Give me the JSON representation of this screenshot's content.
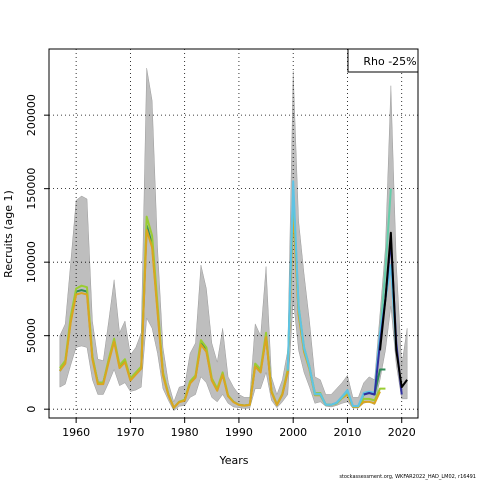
{
  "chart_data": {
    "type": "line",
    "xlabel": "Years",
    "ylabel": "Recruits (age 1)",
    "xlim": [
      1955,
      2023
    ],
    "ylim": [
      -6000,
      245000
    ],
    "x_ticks": [
      1960,
      1970,
      1980,
      1990,
      2000,
      2010,
      2020
    ],
    "y_ticks": [
      0,
      50000,
      100000,
      150000,
      200000
    ],
    "x_tick_labels": [
      "1960",
      "1970",
      "1980",
      "1990",
      "2000",
      "2010",
      "2020"
    ],
    "y_tick_labels": [
      "0",
      "50000",
      "100000",
      "150000",
      "200000"
    ],
    "grid": true,
    "legend_text": "Rho -25%",
    "legend_position": "top-right",
    "credit": "stockassessment.org, WKFAR2022_HAD_LM02, r16491",
    "band": {
      "name": "confidence interval",
      "color": "#bebebe",
      "x": [
        1957,
        1958,
        1959,
        1960,
        1961,
        1962,
        1963,
        1964,
        1965,
        1966,
        1967,
        1968,
        1969,
        1970,
        1971,
        1972,
        1973,
        1974,
        1975,
        1976,
        1977,
        1978,
        1979,
        1980,
        1981,
        1982,
        1983,
        1984,
        1985,
        1986,
        1987,
        1988,
        1989,
        1990,
        1991,
        1992,
        1993,
        1994,
        1995,
        1996,
        1997,
        1998,
        1999,
        2000,
        2001,
        2002,
        2003,
        2004,
        2005,
        2006,
        2007,
        2008,
        2009,
        2010,
        2011,
        2012,
        2013,
        2014,
        2015,
        2016,
        2017,
        2018,
        2019,
        2020,
        2021
      ],
      "upper": [
        50000,
        58000,
        100000,
        142000,
        145000,
        143000,
        60000,
        34000,
        33000,
        60000,
        88000,
        52000,
        60000,
        37000,
        42000,
        52000,
        232000,
        210000,
        110000,
        42000,
        18000,
        5000,
        15000,
        16000,
        38000,
        45000,
        98000,
        82000,
        45000,
        32000,
        55000,
        22000,
        15000,
        10000,
        8000,
        8000,
        58000,
        50000,
        97000,
        22000,
        10000,
        20000,
        40000,
        230000,
        128000,
        92000,
        60000,
        22000,
        20000,
        10000,
        10000,
        14000,
        18000,
        23000,
        8000,
        8000,
        18000,
        22000,
        20000,
        65000,
        110000,
        220000,
        100000,
        30000,
        55000
      ],
      "lower": [
        15000,
        17000,
        30000,
        42000,
        43000,
        42000,
        20000,
        10000,
        10000,
        18000,
        27000,
        16000,
        18000,
        12000,
        13000,
        15000,
        62000,
        55000,
        38000,
        14000,
        6000,
        -1000,
        2000,
        2500,
        8000,
        10000,
        22000,
        18000,
        8000,
        5000,
        10000,
        4000,
        1500,
        1000,
        500,
        800,
        14000,
        14000,
        25000,
        6000,
        1000,
        5000,
        10000,
        75000,
        40000,
        25000,
        15000,
        4000,
        5000,
        2000,
        1500,
        2500,
        4000,
        5000,
        800,
        800,
        4000,
        5000,
        3000,
        20000,
        40000,
        70000,
        30000,
        7000,
        7000
      ]
    },
    "series": [
      {
        "color": "#2e8b57",
        "x": [
          1957,
          1958,
          1959,
          1960,
          1961,
          1962,
          1963,
          1964,
          1965,
          1966,
          1967,
          1968,
          1969,
          1970,
          1971,
          1972,
          1973,
          1974,
          1975,
          1976,
          1977,
          1978,
          1979,
          1980,
          1981,
          1982,
          1983,
          1984,
          1985,
          1986,
          1987,
          1988,
          1989,
          1990,
          1991,
          1992,
          1993,
          1994,
          1995,
          1996,
          1997,
          1998,
          1999,
          2000,
          2001,
          2002,
          2003,
          2004,
          2005,
          2006,
          2007,
          2008,
          2009,
          2010,
          2011,
          2012,
          2013,
          2014,
          2015,
          2016,
          2017
        ],
        "values": [
          26000,
          32000,
          60000,
          80000,
          81000,
          80000,
          35000,
          18000,
          18000,
          33000,
          47000,
          29000,
          33000,
          20000,
          24000,
          28000,
          125000,
          112000,
          68000,
          24000,
          10000,
          1000,
          5000,
          6000,
          18000,
          22000,
          45000,
          40000,
          20000,
          13000,
          24000,
          9000,
          5000,
          3000,
          2500,
          3000,
          30000,
          26000,
          50000,
          12000,
          3000,
          10000,
          26000,
          140000,
          66000,
          40000,
          28000,
          10000,
          10000,
          3000,
          3000,
          4000,
          8000,
          12000,
          2000,
          2000,
          10000,
          11000,
          10000,
          27000,
          27000
        ]
      },
      {
        "color": "#9acd32",
        "x": [
          1957,
          1958,
          1959,
          1960,
          1961,
          1962,
          1963,
          1964,
          1965,
          1966,
          1967,
          1968,
          1969,
          1970,
          1971,
          1972,
          1973,
          1974,
          1975,
          1976,
          1977,
          1978,
          1979,
          1980,
          1981,
          1982,
          1983,
          1984,
          1985,
          1986,
          1987,
          1988,
          1989,
          1990,
          1991,
          1992,
          1993,
          1994,
          1995,
          1996,
          1997,
          1998,
          1999,
          2000,
          2001,
          2002,
          2003,
          2004,
          2005,
          2006,
          2007,
          2008,
          2009,
          2010,
          2011,
          2012,
          2013,
          2014,
          2015,
          2016,
          2017
        ],
        "values": [
          28000,
          33000,
          63000,
          82000,
          84000,
          83000,
          36000,
          18000,
          18000,
          34000,
          48000,
          30000,
          34000,
          21000,
          25000,
          29000,
          131000,
          118000,
          71000,
          25000,
          10000,
          1000,
          5000,
          6500,
          19000,
          23000,
          47000,
          42000,
          21000,
          14000,
          25000,
          9500,
          5000,
          3000,
          2500,
          3000,
          31000,
          27000,
          52000,
          12500,
          3000,
          10500,
          27000,
          146000,
          70000,
          42000,
          29000,
          11000,
          11000,
          3000,
          3000,
          4000,
          8500,
          11000,
          2000,
          2000,
          7000,
          7000,
          6000,
          14000,
          14000
        ]
      },
      {
        "color": "#daa520",
        "x": [
          1957,
          1958,
          1959,
          1960,
          1961,
          1962,
          1963,
          1964,
          1965,
          1966,
          1967,
          1968,
          1969,
          1970,
          1971,
          1972,
          1973,
          1974,
          1975,
          1976,
          1977,
          1978,
          1979,
          1980,
          1981,
          1982,
          1983,
          1984,
          1985,
          1986,
          1987,
          1988,
          1989,
          1990,
          1991,
          1992,
          1993,
          1994,
          1995,
          1996,
          1997,
          1998,
          1999,
          2000,
          2001,
          2002,
          2003,
          2004,
          2005,
          2006,
          2007,
          2008,
          2009,
          2010,
          2011,
          2012,
          2013,
          2014,
          2015,
          2016
        ],
        "values": [
          26000,
          31000,
          59000,
          78000,
          79000,
          78000,
          34000,
          17000,
          17000,
          32000,
          46000,
          28000,
          32000,
          19500,
          23500,
          27500,
          122000,
          110000,
          66000,
          23000,
          9500,
          1000,
          4800,
          5800,
          17500,
          21500,
          44000,
          39000,
          19500,
          12500,
          23500,
          8800,
          4800,
          2900,
          2400,
          2900,
          29000,
          25000,
          49000,
          11500,
          2900,
          9800,
          25000,
          137000,
          64000,
          39000,
          27000,
          9500,
          9500,
          2900,
          2900,
          3800,
          7500,
          10000,
          1500,
          1500,
          5000,
          5000,
          4000,
          12000
        ]
      },
      {
        "color": "#66cdaa",
        "x": [
          1999,
          2000,
          2001,
          2002,
          2003,
          2004,
          2005,
          2006,
          2007,
          2008,
          2009,
          2010,
          2011,
          2012,
          2013,
          2014,
          2015,
          2016,
          2017,
          2018
        ],
        "values": [
          26000,
          150000,
          68000,
          41000,
          28000,
          10000,
          10000,
          3000,
          3000,
          4000,
          8000,
          12000,
          2000,
          2000,
          10000,
          11000,
          10000,
          50000,
          95000,
          150000
        ]
      },
      {
        "color": "#5fc3e4",
        "x": [
          1999,
          2000,
          2001,
          2002,
          2003,
          2004,
          2005,
          2006,
          2007,
          2008,
          2009,
          2010,
          2011,
          2012,
          2013,
          2014,
          2015,
          2016,
          2017,
          2018,
          2019
        ],
        "values": [
          27000,
          155000,
          70000,
          42000,
          29000,
          10500,
          10500,
          3000,
          3000,
          4500,
          8500,
          13000,
          2200,
          2200,
          11000,
          12000,
          11000,
          52000,
          75000,
          98000,
          40000
        ]
      },
      {
        "color": "#2f2fa0",
        "x": [
          2013,
          2014,
          2015,
          2016,
          2017,
          2018,
          2019,
          2020
        ],
        "values": [
          10000,
          11000,
          10000,
          45000,
          75000,
          115000,
          45000,
          10000
        ]
      },
      {
        "color": "#000000",
        "x": [
          2016,
          2017,
          2018,
          2019,
          2020,
          2021
        ],
        "values": [
          40000,
          75000,
          120000,
          40000,
          15000,
          20000
        ]
      }
    ]
  }
}
